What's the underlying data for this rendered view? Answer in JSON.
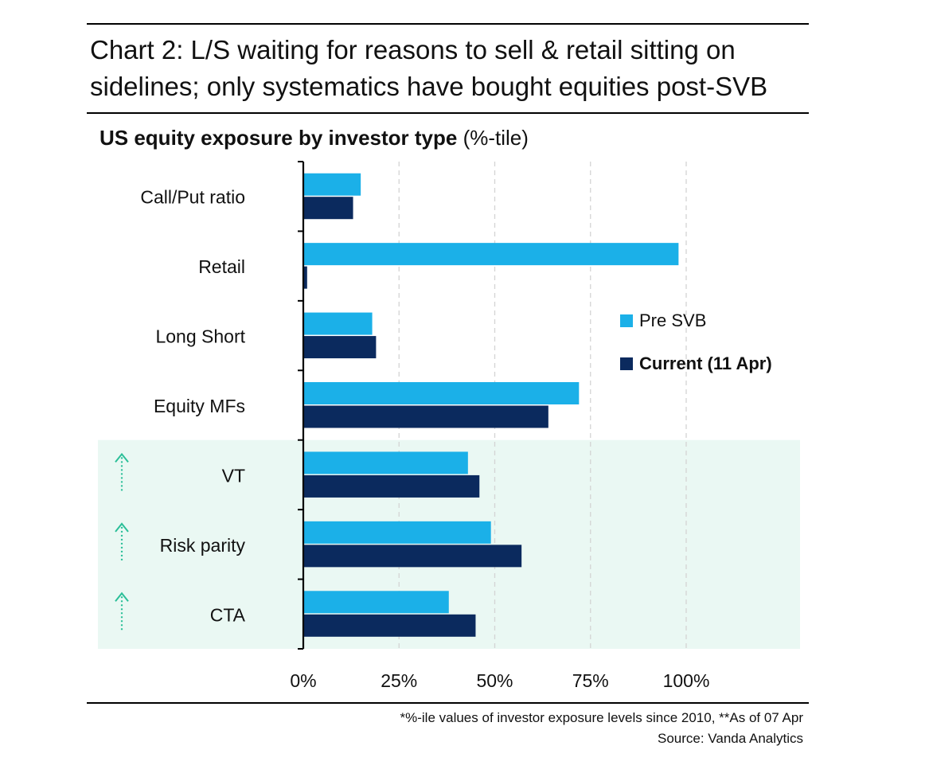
{
  "header": {
    "title": "Chart 2: L/S waiting for reasons to sell & retail sitting on sidelines; only systematics have bought equities post-SVB"
  },
  "colors": {
    "pre": "#1BB0E8",
    "current": "#0B2A5E",
    "highlight_band": "#EAF8F3",
    "arrow": "#2BBF98"
  },
  "chart_data": {
    "type": "bar",
    "orientation": "horizontal",
    "title": "US equity exposure by investor type",
    "title_suffix": "(%-tile)",
    "categories": [
      "Call/Put ratio",
      "Retail",
      "Long Short",
      "Equity MFs",
      "VT",
      "Risk parity",
      "CTA"
    ],
    "series": [
      {
        "name": "Pre SVB",
        "values": [
          15,
          98,
          18,
          72,
          43,
          49,
          38
        ]
      },
      {
        "name": "Current (11 Apr)",
        "values": [
          13,
          1,
          19,
          64,
          46,
          57,
          45
        ]
      }
    ],
    "xlim": [
      0,
      100
    ],
    "x_ticks": [
      0,
      25,
      50,
      75,
      100
    ],
    "x_tick_labels": [
      "0%",
      "25%",
      "50%",
      "75%",
      "100%"
    ],
    "grid": "vertical dashed",
    "legend": "right",
    "highlighted_categories": [
      "VT",
      "Risk parity",
      "CTA"
    ],
    "highlight_marker": "dotted up arrow"
  },
  "footer": {
    "note": "*%-ile values of investor exposure levels since 2010, **As of 07 Apr",
    "source": "Source: Vanda Analytics"
  }
}
